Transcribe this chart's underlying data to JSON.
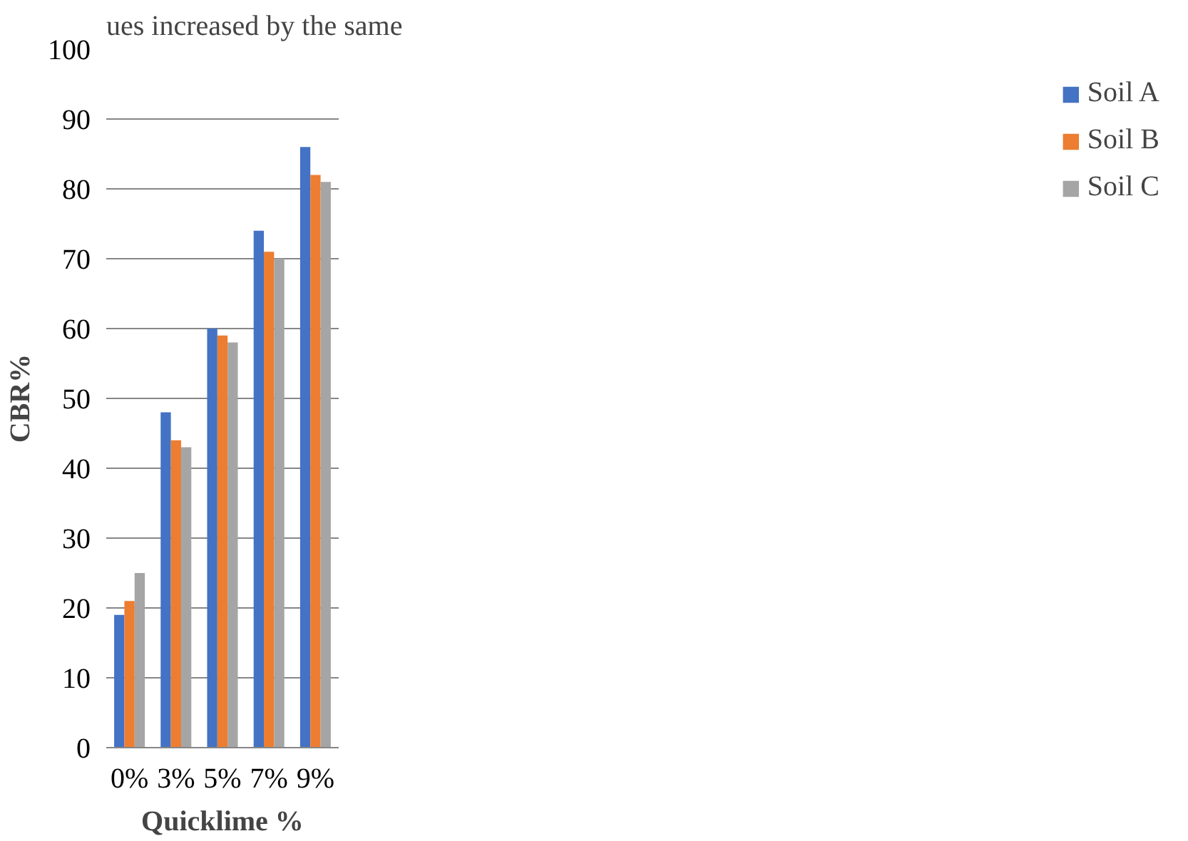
{
  "chart_data": {
    "type": "bar",
    "xlabel": "Quicklime %",
    "ylabel": "CBR%",
    "categories": [
      "0%",
      "3%",
      "5%",
      "7%",
      "9%"
    ],
    "series": [
      {
        "name": "Soil A",
        "color": "#4472c4",
        "values": [
          19,
          48,
          60,
          74,
          86
        ]
      },
      {
        "name": "Soil B",
        "color": "#ed7d31",
        "values": [
          21,
          44,
          59,
          71,
          82
        ]
      },
      {
        "name": "Soil C",
        "color": "#a5a5a5",
        "values": [
          25,
          43,
          58,
          70,
          81
        ]
      }
    ],
    "ylim": [
      0,
      100
    ],
    "yticks": [
      0,
      10,
      20,
      30,
      40,
      50,
      60,
      70,
      80,
      90,
      100
    ],
    "grid": "y",
    "legend": "right",
    "annotations": [
      "ues  increased  by  the  same"
    ]
  }
}
